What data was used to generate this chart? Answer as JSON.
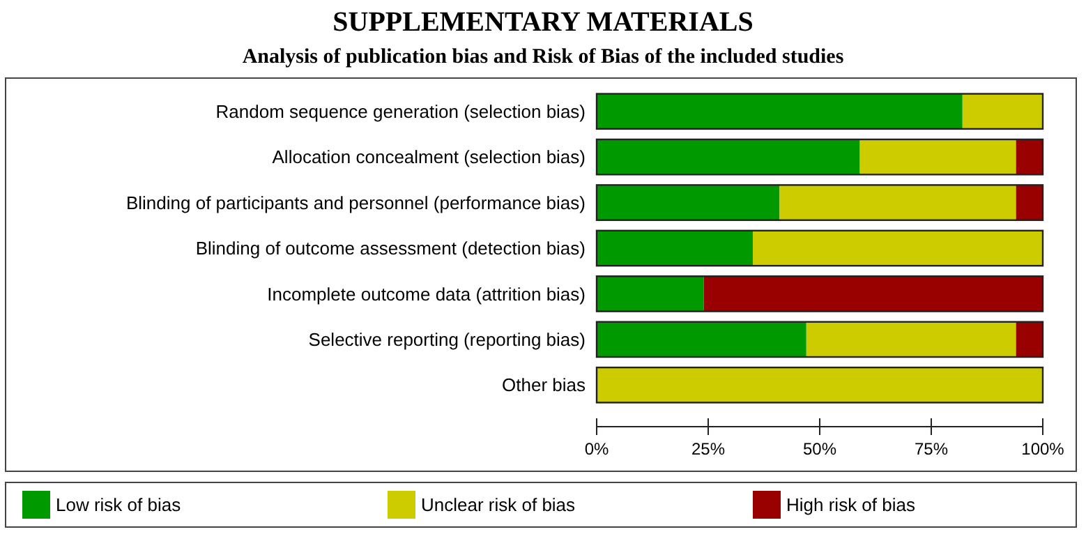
{
  "chart_data": {
    "type": "bar",
    "title": "SUPPLEMENTARY MATERIALS",
    "subtitle": "Analysis of publication bias and Risk of Bias of the included studies",
    "orientation": "horizontal",
    "stacked": true,
    "categories": [
      "Random sequence generation (selection bias)",
      "Allocation concealment (selection bias)",
      "Blinding of participants and personnel (performance bias)",
      "Blinding of outcome assessment (detection bias)",
      "Incomplete outcome data (attrition bias)",
      "Selective reporting (reporting bias)",
      "Other bias"
    ],
    "series": [
      {
        "name": "Low risk of bias",
        "color": "#009900",
        "values": [
          82,
          59,
          41,
          35,
          24,
          47,
          0
        ]
      },
      {
        "name": "Unclear risk of bias",
        "color": "#cccc00",
        "values": [
          18,
          35,
          53,
          65,
          0,
          47,
          100
        ]
      },
      {
        "name": "High risk of bias",
        "color": "#990000",
        "values": [
          0,
          6,
          6,
          0,
          76,
          6,
          0
        ]
      }
    ],
    "xlim": [
      0,
      100
    ],
    "xticks": [
      {
        "value": 0,
        "label": "0%"
      },
      {
        "value": 25,
        "label": "25%"
      },
      {
        "value": 50,
        "label": "50%"
      },
      {
        "value": 75,
        "label": "75%"
      },
      {
        "value": 100,
        "label": "100%"
      }
    ],
    "legend": "bottom"
  }
}
